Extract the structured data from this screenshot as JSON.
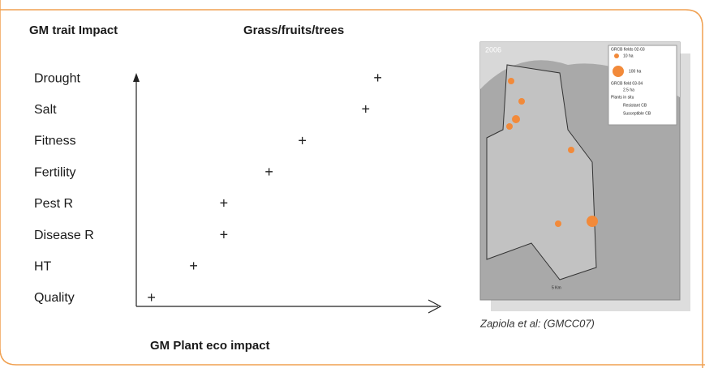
{
  "chart_data": {
    "type": "scatter",
    "title": "Grass/fruits/trees",
    "y_label": "GM trait Impact",
    "x_label": "GM Plant eco impact",
    "categories": [
      "Quality",
      "HT",
      "Disease R",
      "Pest R",
      "Fertility",
      "Fitness",
      "Salt",
      "Drought"
    ],
    "values": [
      0.5,
      1.9,
      2.9,
      2.9,
      4.4,
      5.5,
      7.6,
      8.0
    ],
    "xlim": [
      0,
      10
    ],
    "marker": "+",
    "color": "#222222"
  },
  "image": {
    "caption": "Zapiola et al: (GMCC07)",
    "year": "2006",
    "legend": [
      "GRCB fields 02-03",
      "10 ha",
      "100 ha",
      "GRCB field 03-04",
      "2.5 ha",
      "Plants in situ",
      "Resistant CB",
      "Susceptible CB"
    ],
    "scale": "5 Km"
  }
}
